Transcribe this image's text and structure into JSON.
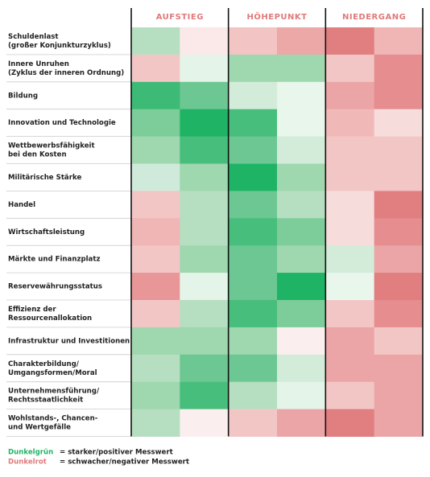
{
  "header": {
    "phases": [
      "AUFSTIEG",
      "HÖHEPUNKT",
      "NIEDERGANG"
    ],
    "phase_color": "#e07a7c"
  },
  "table": {
    "rows": [
      {
        "label": [
          "Schuldenlast",
          "(großer Konjunkturzyklus)"
        ],
        "colors": [
          "#b5dfc0",
          "#fbe9e9",
          "#f3c4c4",
          "#eca7a7",
          "#e07e80",
          "#f0b5b5"
        ]
      },
      {
        "label": [
          "Innere Unruhen",
          "(Zyklus der inneren Ordnung)"
        ],
        "colors": [
          "#f3c6c6",
          "#e4f4e8",
          "#9fd7ae",
          "#9fd7ae",
          "#f3c6c6",
          "#e68d8f"
        ]
      },
      {
        "label": [
          "Bildung"
        ],
        "colors": [
          "#3dba75",
          "#6cc792",
          "#d2ecd9",
          "#e8f6ec",
          "#eba5a6",
          "#e68d8f"
        ]
      },
      {
        "label": [
          "Innovation und Technologie"
        ],
        "colors": [
          "#7ccd9a",
          "#1fb465",
          "#48be7c",
          "#e8f6ec",
          "#f1b8b8",
          "#f7dcdc"
        ]
      },
      {
        "label": [
          "Wettbewerbsfähigkeit",
          "bei den Kosten"
        ],
        "colors": [
          "#9fd7ae",
          "#48be7c",
          "#6cc792",
          "#d2ecd9",
          "#f3c6c6",
          "#f3c6c6"
        ]
      },
      {
        "label": [
          "Militärische Stärke"
        ],
        "colors": [
          "#cfeada",
          "#9fd7ae",
          "#1fb465",
          "#9fd7ae",
          "#f3c6c6",
          "#f3c6c6"
        ]
      },
      {
        "label": [
          "Handel"
        ],
        "colors": [
          "#f3c6c6",
          "#b5dfc0",
          "#6cc792",
          "#b5dfc0",
          "#f7dcdc",
          "#e07e80"
        ]
      },
      {
        "label": [
          "Wirtschaftsleistung"
        ],
        "colors": [
          "#f0b5b5",
          "#b5dfc0",
          "#48be7c",
          "#7ccd9a",
          "#f7dcdc",
          "#e68d8f"
        ]
      },
      {
        "label": [
          "Märkte und Finanzplatz"
        ],
        "colors": [
          "#f3c6c6",
          "#9fd7ae",
          "#6cc792",
          "#9fd7ae",
          "#d2ecd9",
          "#eba5a6"
        ]
      },
      {
        "label": [
          "Reservewährungsstatus"
        ],
        "colors": [
          "#e99698",
          "#e4f4e8",
          "#6cc792",
          "#1fb465",
          "#e8f6ec",
          "#e07e80"
        ]
      },
      {
        "label": [
          "Effizienz der",
          "Ressourcenallokation"
        ],
        "colors": [
          "#f3c6c6",
          "#b5dfc0",
          "#48be7c",
          "#7ccd9a",
          "#f3c6c6",
          "#e68d8f"
        ]
      },
      {
        "label": [
          "Infrastruktur und Investitionen"
        ],
        "colors": [
          "#9fd7ae",
          "#9fd7ae",
          "#9fd7ae",
          "#fbeeee",
          "#eba5a6",
          "#f3c6c6"
        ]
      },
      {
        "label": [
          "Charakterbildung/",
          "Umgangsformen/Moral"
        ],
        "colors": [
          "#b5dfc0",
          "#6cc792",
          "#6cc792",
          "#d2ecd9",
          "#eba5a6",
          "#eba5a6"
        ]
      },
      {
        "label": [
          "Unternehmensführung/",
          "Rechtsstaatlichkeit"
        ],
        "colors": [
          "#9fd7ae",
          "#48be7c",
          "#b5dfc0",
          "#e4f4e8",
          "#f3c6c6",
          "#eba5a6"
        ]
      },
      {
        "label": [
          "Wohlstands-, Chancen-",
          "und Wertgefälle"
        ],
        "colors": [
          "#b5dfc0",
          "#fbeeee",
          "#f3c6c6",
          "#eba5a6",
          "#e07e80",
          "#eba5a6"
        ]
      }
    ]
  },
  "legend": [
    {
      "key": "Dunkelgrün",
      "text": "= starker/positiver Messwert",
      "color": "#1fb465"
    },
    {
      "key": "Dunkelrot",
      "text": "= schwacher/negativer Messwert",
      "color": "#e07a7c"
    }
  ]
}
